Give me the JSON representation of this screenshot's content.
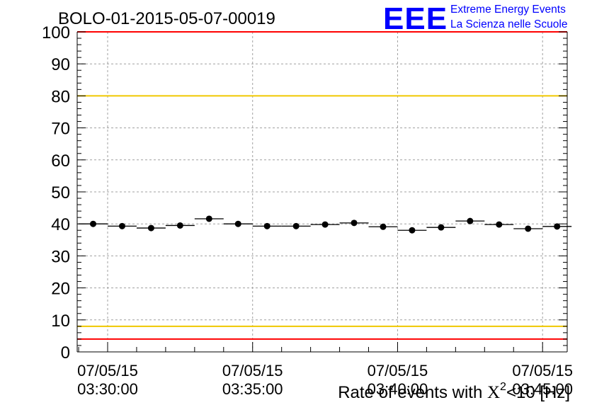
{
  "chart_data": {
    "type": "scatter",
    "title": "BOLO-01-2015-05-07-00019",
    "logo": {
      "mark": "EEE",
      "line1": "Extreme Energy Events",
      "line2": "La Scienza nelle Scuole"
    },
    "ylabel_prefix": "Rate of events with ",
    "ylabel_chi": "X",
    "ylabel_sup": "2",
    "ylabel_suffix": "<10 [Hz]",
    "ylim": [
      0,
      100
    ],
    "yticks": [
      0,
      10,
      20,
      30,
      40,
      50,
      60,
      70,
      80,
      90,
      100
    ],
    "x_range_min": [
      28.95,
      45.85
    ],
    "xticks": [
      {
        "x": 30,
        "date": "07/05/15",
        "time": "03:30:00"
      },
      {
        "x": 35,
        "date": "07/05/15",
        "time": "03:35:00"
      },
      {
        "x": 40,
        "date": "07/05/15",
        "time": "03:40:00"
      },
      {
        "x": 45,
        "date": "07/05/15",
        "time": "03:45:00"
      }
    ],
    "bin_width_min": 1,
    "series": [
      {
        "x": [
          29.5,
          30.5,
          31.5,
          32.5,
          33.5,
          34.5,
          35.5,
          36.5,
          37.5,
          38.5,
          39.5,
          40.5,
          41.5,
          42.5,
          43.5,
          44.5,
          45.5
        ],
        "y": [
          40.0,
          39.3,
          38.7,
          39.5,
          41.6,
          40.0,
          39.3,
          39.3,
          39.8,
          40.3,
          39.1,
          38.0,
          38.9,
          40.9,
          39.8,
          38.5,
          39.2
        ]
      }
    ],
    "reference_lines": [
      {
        "y": 100,
        "color": "#ff0000"
      },
      {
        "y": 80,
        "color": "#f0c800"
      },
      {
        "y": 8,
        "color": "#f0c800"
      },
      {
        "y": 4,
        "color": "#ff0000"
      }
    ],
    "grid": true,
    "colors": {
      "marker": "#000000",
      "logo_blue": "#0000ff",
      "grid": "#a0a0a0"
    }
  }
}
